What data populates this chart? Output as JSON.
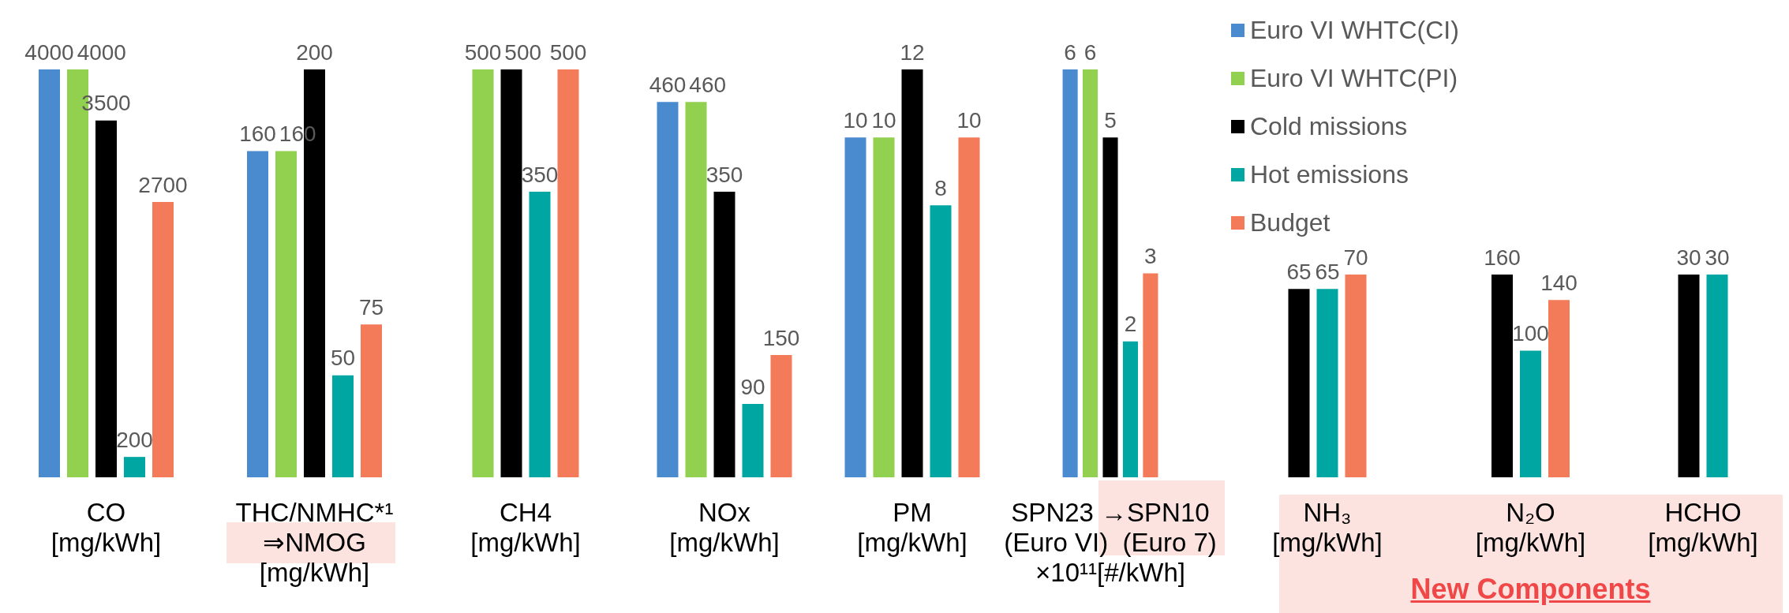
{
  "chart_data": [
    {
      "type": "bar",
      "categories": [
        "CO\n[mg/kWh]"
      ],
      "tick_labels": "x",
      "data_labels": true,
      "legend": "top right",
      "series": [
        {
          "name": "Euro VI WHTC(CI)",
          "color": "#4a8bd0",
          "values": [
            4000
          ]
        },
        {
          "name": "Euro VI WHTC(PI)",
          "color": "#92d050",
          "values": [
            4000
          ]
        },
        {
          "name": "Cold missions",
          "color": "#000000",
          "values": [
            3500
          ]
        },
        {
          "name": "Hot emissions",
          "color": "#00a6a2",
          "values": [
            200
          ]
        },
        {
          "name": "Budget",
          "color": "#f47b5a",
          "values": [
            2700
          ]
        }
      ]
    },
    {
      "type": "bar",
      "categories": [
        "THC/NMHC*¹\n⇒NMOG\n[mg/kWh]"
      ],
      "tick_labels": "x",
      "data_labels": true,
      "series": [
        {
          "color": "#4a8bd0",
          "values": [
            160
          ]
        },
        {
          "color": "#92d050",
          "values": [
            160
          ]
        },
        {
          "color": "#000000",
          "values": [
            200
          ]
        },
        {
          "color": "#00a6a2",
          "values": [
            50
          ]
        },
        {
          "color": "#f47b5a",
          "values": [
            75
          ]
        }
      ]
    },
    {
      "type": "bar",
      "categories": [
        "CH4\n[mg/kWh]"
      ],
      "tick_labels": "x",
      "data_labels": true,
      "series": [
        {
          "color": "#92d050",
          "values": [
            500
          ]
        },
        {
          "color": "#000000",
          "values": [
            500
          ]
        },
        {
          "color": "#00a6a2",
          "values": [
            350
          ]
        },
        {
          "color": "#f47b5a",
          "values": [
            500
          ]
        }
      ]
    },
    {
      "type": "bar",
      "categories": [
        "NOx\n[mg/kWh]"
      ],
      "tick_labels": "x",
      "data_labels": true,
      "series": [
        {
          "color": "#4a8bd0",
          "values": [
            460
          ]
        },
        {
          "color": "#92d050",
          "values": [
            460
          ]
        },
        {
          "color": "#000000",
          "values": [
            350
          ]
        },
        {
          "color": "#00a6a2",
          "values": [
            90
          ]
        },
        {
          "color": "#f47b5a",
          "values": [
            150
          ]
        }
      ]
    },
    {
      "type": "bar",
      "categories": [
        "PM\n[mg/kWh]"
      ],
      "tick_labels": "x",
      "data_labels": true,
      "series": [
        {
          "color": "#4a8bd0",
          "values": [
            10
          ]
        },
        {
          "color": "#92d050",
          "values": [
            10
          ]
        },
        {
          "color": "#000000",
          "values": [
            12
          ]
        },
        {
          "color": "#00a6a2",
          "values": [
            8
          ]
        },
        {
          "color": "#f47b5a",
          "values": [
            10
          ]
        }
      ]
    },
    {
      "type": "bar",
      "categories": [
        "SPN23 →SPN10\n(Euro VI)  (Euro 7)\n×10¹¹[#/kWh]"
      ],
      "tick_labels": "x",
      "data_labels": true,
      "series": [
        {
          "color": "#4a8bd0",
          "values": [
            6
          ]
        },
        {
          "color": "#92d050",
          "values": [
            6
          ]
        },
        {
          "color": "#000000",
          "values": [
            5
          ]
        },
        {
          "color": "#00a6a2",
          "values": [
            2
          ]
        },
        {
          "color": "#f47b5a",
          "values": [
            3
          ]
        }
      ]
    },
    {
      "type": "bar",
      "categories": [
        "NH₃\n[mg/kWh]"
      ],
      "tick_labels": "x",
      "data_labels": true,
      "series": [
        {
          "color": "#000000",
          "values": [
            65
          ]
        },
        {
          "color": "#00a6a2",
          "values": [
            65
          ]
        },
        {
          "color": "#f47b5a",
          "values": [
            70
          ]
        }
      ]
    },
    {
      "type": "bar",
      "categories": [
        "N₂O\n[mg/kWh]"
      ],
      "tick_labels": "x",
      "data_labels": true,
      "annotations": [
        "New Components"
      ],
      "series": [
        {
          "color": "#000000",
          "values": [
            160
          ]
        },
        {
          "color": "#00a6a2",
          "values": [
            100
          ]
        },
        {
          "color": "#f47b5a",
          "values": [
            140
          ]
        }
      ]
    },
    {
      "type": "bar",
      "categories": [
        "HCHO\n[mg/kWh]"
      ],
      "tick_labels": "x",
      "data_labels": true,
      "series": [
        {
          "color": "#000000",
          "values": [
            30
          ]
        },
        {
          "color": "#00a6a2",
          "values": [
            30
          ]
        }
      ]
    }
  ]
}
